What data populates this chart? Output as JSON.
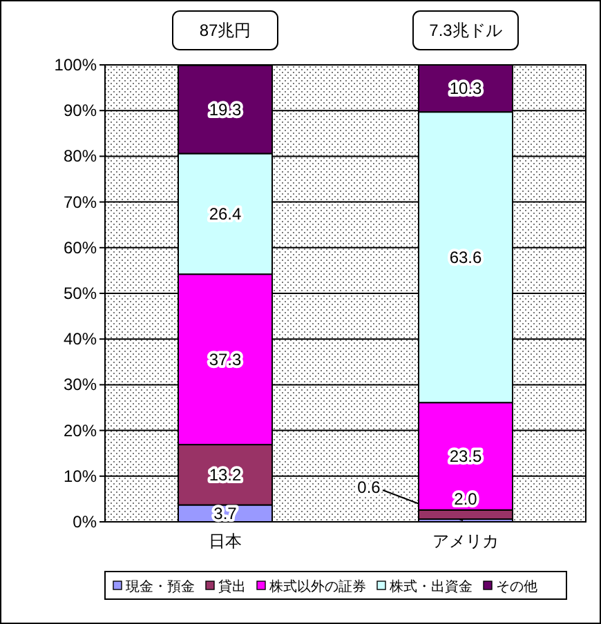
{
  "chart_data": {
    "type": "bar",
    "stacked": true,
    "categories": [
      "日本",
      "アメリカ"
    ],
    "series": [
      {
        "name": "現金・預金",
        "color": "#9999ff",
        "values": [
          3.7,
          0.6
        ],
        "value_labels": [
          "3.7",
          "0.6"
        ]
      },
      {
        "name": "貸出",
        "color": "#993366",
        "values": [
          13.2,
          2.0
        ],
        "value_labels": [
          "13.2",
          "2.0"
        ]
      },
      {
        "name": "株式以外の証券",
        "color": "#ff00ff",
        "values": [
          37.3,
          23.5
        ],
        "value_labels": [
          "37.3",
          "23.5"
        ]
      },
      {
        "name": "株式・出資金",
        "color": "#ccffff",
        "values": [
          26.4,
          63.6
        ],
        "value_labels": [
          "26.4",
          "63.6"
        ]
      },
      {
        "name": "その他",
        "color": "#660066",
        "values": [
          19.3,
          10.3
        ],
        "value_labels": [
          "19.3",
          "10.3"
        ]
      }
    ],
    "ylim": [
      0,
      100
    ],
    "yticks": [
      {
        "value": 0,
        "label": "0%"
      },
      {
        "value": 10,
        "label": "10%"
      },
      {
        "value": 20,
        "label": "20%"
      },
      {
        "value": 30,
        "label": "30%"
      },
      {
        "value": 40,
        "label": "40%"
      },
      {
        "value": 50,
        "label": "50%"
      },
      {
        "value": 60,
        "label": "60%"
      },
      {
        "value": 70,
        "label": "70%"
      },
      {
        "value": 80,
        "label": "80%"
      },
      {
        "value": 90,
        "label": "90%"
      },
      {
        "value": 100,
        "label": "100%"
      }
    ],
    "grid": "y",
    "legend": "bottom",
    "annotations": [
      "87兆円",
      "7.3兆ドル"
    ]
  }
}
